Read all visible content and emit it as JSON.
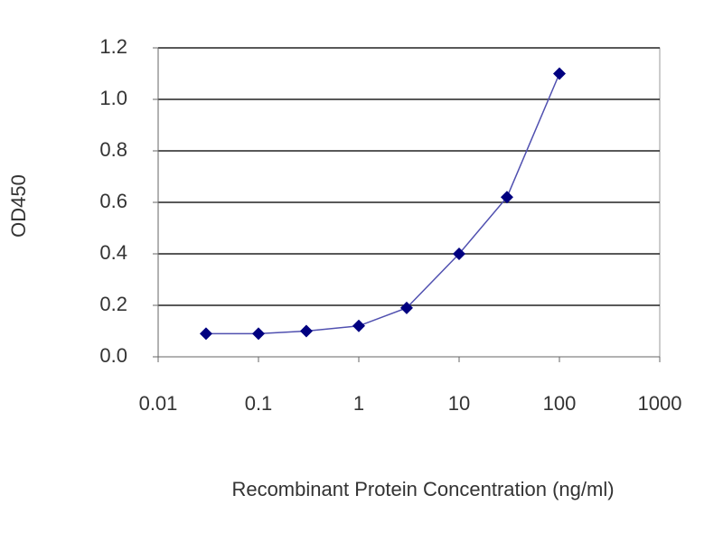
{
  "chart_data": {
    "type": "line",
    "x_label": "Recombinant Protein Concentration (ng/ml)",
    "y_label": "OD450",
    "x": [
      0.03,
      0.1,
      0.3,
      1,
      3,
      10,
      30,
      100
    ],
    "series": [
      {
        "name": "OD450",
        "color": "#000080",
        "line_color": "#5050b0",
        "values": [
          0.09,
          0.09,
          0.1,
          0.12,
          0.19,
          0.4,
          0.62,
          1.1
        ]
      }
    ],
    "xlim": [
      0.01,
      1000
    ],
    "xticks": [
      0.01,
      0.1,
      1,
      10,
      100,
      1000
    ],
    "xscale": "log",
    "ylim": [
      0,
      1.2
    ],
    "yticks": [
      {
        "value": 0,
        "label": "0.0"
      },
      0.2,
      0.4,
      0.6,
      0.8,
      {
        "value": 1,
        "label": "1.0"
      },
      1.2
    ],
    "grid": true
  }
}
